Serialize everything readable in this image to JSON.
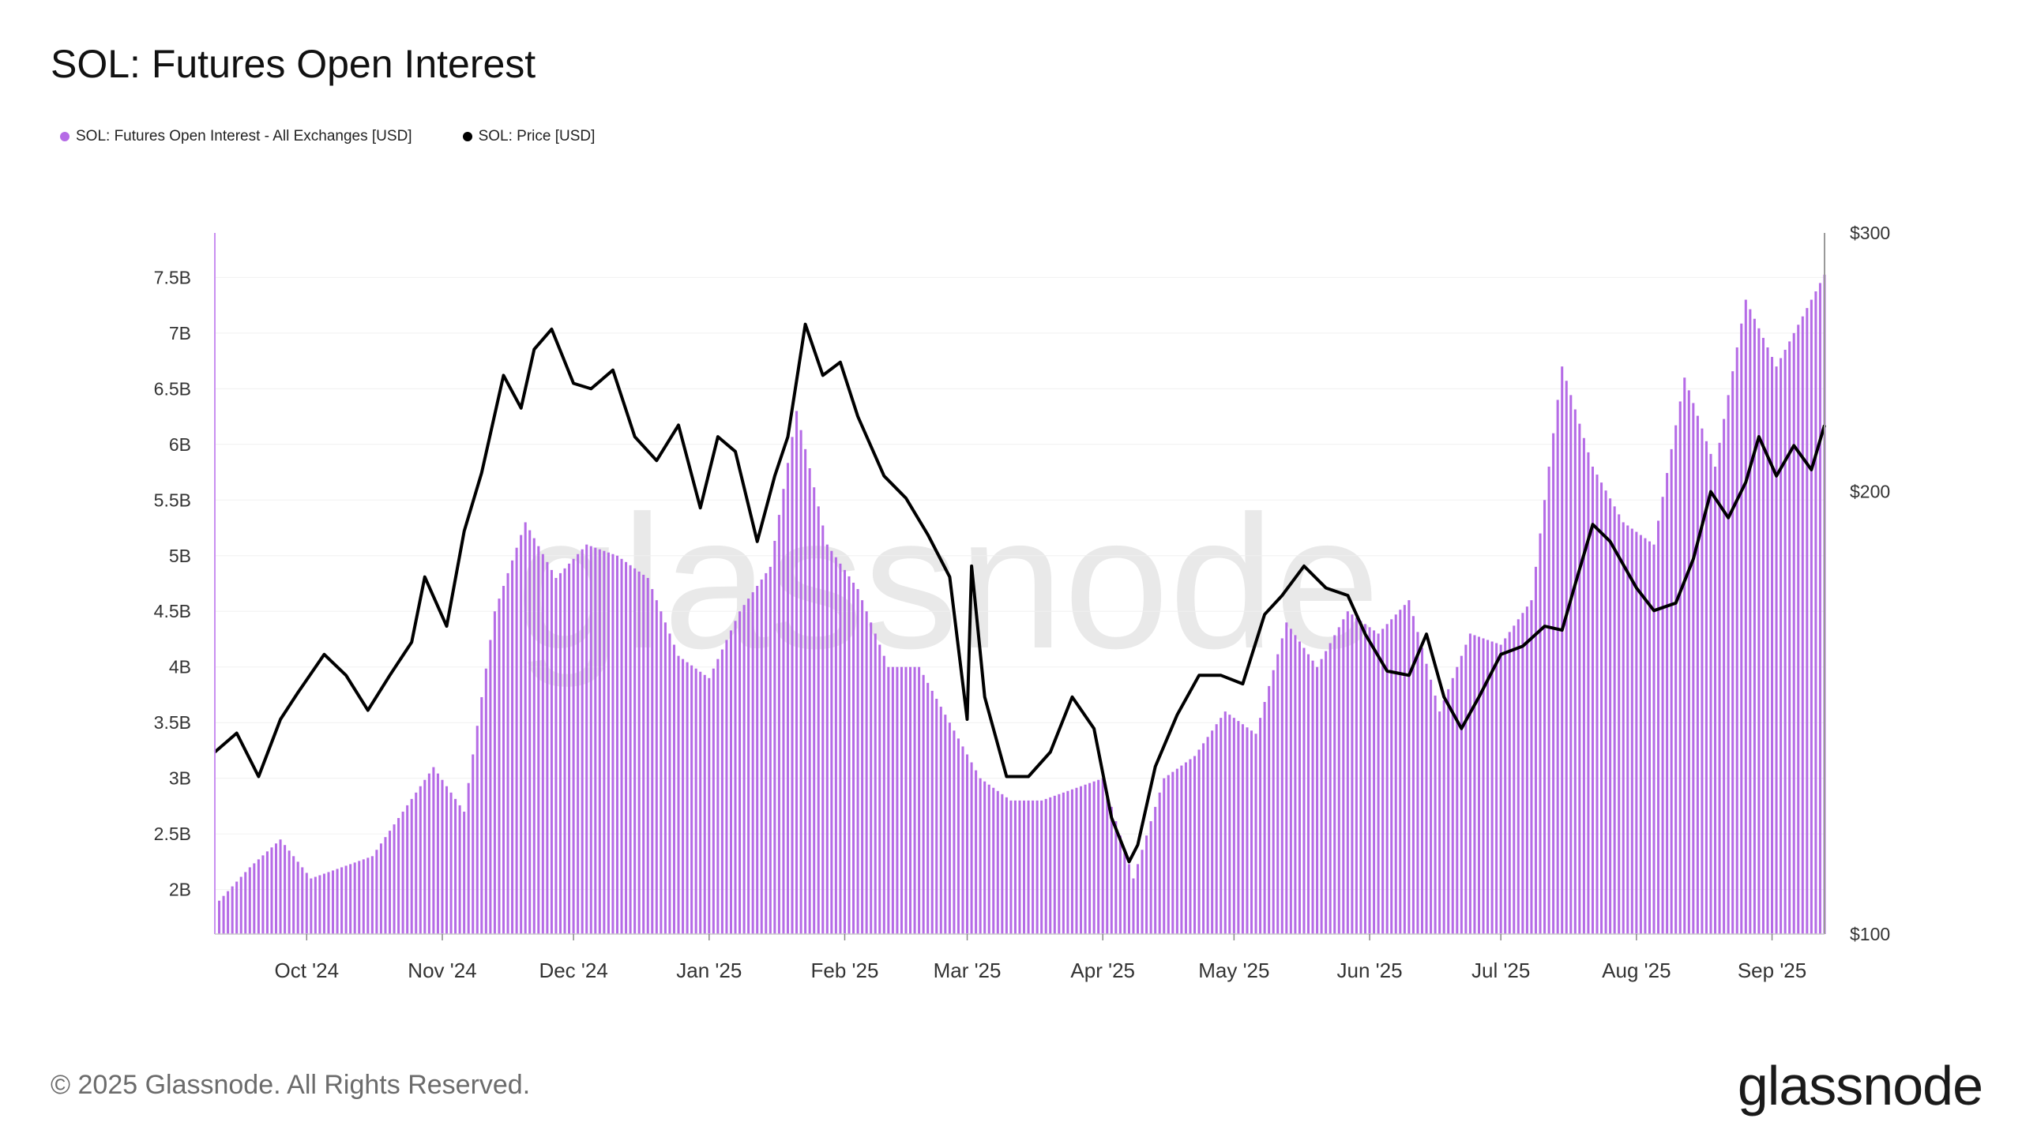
{
  "title": "SOL: Futures Open Interest",
  "legend": [
    {
      "label": "SOL: Futures Open Interest - All Exchanges [USD]",
      "color": "#b56be6"
    },
    {
      "label": "SOL: Price [USD]",
      "color": "#000000"
    }
  ],
  "footer": "© 2025 Glassnode. All Rights Reserved.",
  "logo": "glassnode",
  "watermark": "glassnode",
  "chart_data": {
    "type": "bar",
    "xlabel": "",
    "ylabel": "",
    "x_start": "2024-09-10",
    "x_end": "2025-09-13",
    "x_ticks": [
      {
        "label": "Oct '24",
        "date": "2024-10-01"
      },
      {
        "label": "Nov '24",
        "date": "2024-11-01"
      },
      {
        "label": "Dec '24",
        "date": "2024-12-01"
      },
      {
        "label": "Jan '25",
        "date": "2025-01-01"
      },
      {
        "label": "Feb '25",
        "date": "2025-02-01"
      },
      {
        "label": "Mar '25",
        "date": "2025-03-01"
      },
      {
        "label": "Apr '25",
        "date": "2025-04-01"
      },
      {
        "label": "May '25",
        "date": "2025-05-01"
      },
      {
        "label": "Jun '25",
        "date": "2025-06-01"
      },
      {
        "label": "Jul '25",
        "date": "2025-07-01"
      },
      {
        "label": "Aug '25",
        "date": "2025-08-01"
      },
      {
        "label": "Sep '25",
        "date": "2025-09-01"
      }
    ],
    "y_left": {
      "scale": "linear",
      "range": [
        1.6,
        7.9
      ],
      "ticks": [
        {
          "label": "2B",
          "value": 2.0
        },
        {
          "label": "2.5B",
          "value": 2.5
        },
        {
          "label": "3B",
          "value": 3.0
        },
        {
          "label": "3.5B",
          "value": 3.5
        },
        {
          "label": "4B",
          "value": 4.0
        },
        {
          "label": "4.5B",
          "value": 4.5
        },
        {
          "label": "5B",
          "value": 5.0
        },
        {
          "label": "5.5B",
          "value": 5.5
        },
        {
          "label": "6B",
          "value": 6.0
        },
        {
          "label": "6.5B",
          "value": 6.5
        },
        {
          "label": "7B",
          "value": 7.0
        },
        {
          "label": "7.5B",
          "value": 7.5
        }
      ]
    },
    "y_right": {
      "scale": "log",
      "range": [
        100,
        300
      ],
      "ticks": [
        {
          "label": "$300",
          "value": 300
        },
        {
          "label": "$200",
          "value": 200
        },
        {
          "label": "$100",
          "value": 100
        }
      ]
    },
    "series": [
      {
        "name": "SOL: Futures Open Interest - All Exchanges [USD]",
        "axis": "left",
        "unit": "B USD",
        "color": "#b56be6",
        "dates": [
          "2024-09-10",
          "2024-09-17",
          "2024-09-24",
          "2024-10-01",
          "2024-10-08",
          "2024-10-15",
          "2024-10-22",
          "2024-10-29",
          "2024-11-05",
          "2024-11-12",
          "2024-11-19",
          "2024-11-26",
          "2024-12-03",
          "2024-12-10",
          "2024-12-17",
          "2024-12-24",
          "2024-12-31",
          "2025-01-07",
          "2025-01-14",
          "2025-01-20",
          "2025-01-27",
          "2025-02-03",
          "2025-02-10",
          "2025-02-17",
          "2025-02-24",
          "2025-03-03",
          "2025-03-10",
          "2025-03-17",
          "2025-03-24",
          "2025-03-31",
          "2025-04-07",
          "2025-04-14",
          "2025-04-21",
          "2025-04-28",
          "2025-05-05",
          "2025-05-12",
          "2025-05-19",
          "2025-05-26",
          "2025-06-02",
          "2025-06-09",
          "2025-06-16",
          "2025-06-23",
          "2025-06-30",
          "2025-07-07",
          "2025-07-14",
          "2025-07-21",
          "2025-07-28",
          "2025-08-04",
          "2025-08-11",
          "2025-08-18",
          "2025-08-25",
          "2025-09-01",
          "2025-09-13"
        ],
        "values": [
          1.9,
          2.2,
          2.45,
          2.1,
          2.2,
          2.3,
          2.7,
          3.1,
          2.7,
          4.5,
          5.3,
          4.8,
          5.1,
          5.0,
          4.8,
          4.1,
          3.9,
          4.5,
          4.9,
          6.3,
          5.1,
          4.7,
          4.0,
          4.0,
          3.5,
          3.0,
          2.8,
          2.8,
          2.9,
          3.0,
          2.1,
          3.0,
          3.2,
          3.6,
          3.4,
          4.4,
          4.0,
          4.5,
          4.3,
          4.6,
          3.6,
          4.3,
          4.2,
          4.6,
          6.7,
          5.8,
          5.3,
          5.1,
          6.6,
          5.8,
          7.3,
          6.7,
          7.6
        ]
      },
      {
        "name": "SOL: Price [USD]",
        "axis": "right",
        "unit": "USD",
        "color": "#000000",
        "dates": [
          "2024-09-10",
          "2024-09-15",
          "2024-09-20",
          "2024-09-25",
          "2024-09-29",
          "2024-10-05",
          "2024-10-10",
          "2024-10-15",
          "2024-10-20",
          "2024-10-25",
          "2024-10-28",
          "2024-11-02",
          "2024-11-06",
          "2024-11-10",
          "2024-11-15",
          "2024-11-19",
          "2024-11-22",
          "2024-11-26",
          "2024-12-01",
          "2024-12-05",
          "2024-12-10",
          "2024-12-15",
          "2024-12-20",
          "2024-12-25",
          "2024-12-30",
          "2025-01-03",
          "2025-01-07",
          "2025-01-12",
          "2025-01-16",
          "2025-01-19",
          "2025-01-23",
          "2025-01-27",
          "2025-01-31",
          "2025-02-04",
          "2025-02-10",
          "2025-02-15",
          "2025-02-20",
          "2025-02-25",
          "2025-03-01",
          "2025-03-02",
          "2025-03-05",
          "2025-03-10",
          "2025-03-15",
          "2025-03-20",
          "2025-03-25",
          "2025-03-30",
          "2025-04-03",
          "2025-04-07",
          "2025-04-09",
          "2025-04-13",
          "2025-04-18",
          "2025-04-23",
          "2025-04-28",
          "2025-05-03",
          "2025-05-08",
          "2025-05-12",
          "2025-05-17",
          "2025-05-22",
          "2025-05-27",
          "2025-05-31",
          "2025-06-05",
          "2025-06-10",
          "2025-06-14",
          "2025-06-18",
          "2025-06-22",
          "2025-06-26",
          "2025-07-01",
          "2025-07-06",
          "2025-07-11",
          "2025-07-15",
          "2025-07-18",
          "2025-07-22",
          "2025-07-26",
          "2025-08-01",
          "2025-08-05",
          "2025-08-10",
          "2025-08-14",
          "2025-08-18",
          "2025-08-22",
          "2025-08-26",
          "2025-08-29",
          "2025-09-02",
          "2025-09-06",
          "2025-09-10",
          "2025-09-13"
        ],
        "values": [
          133,
          137,
          128,
          140,
          146,
          155,
          150,
          142,
          150,
          158,
          175,
          162,
          188,
          206,
          240,
          228,
          250,
          258,
          237,
          235,
          242,
          218,
          210,
          222,
          195,
          218,
          213,
          185,
          205,
          218,
          260,
          240,
          245,
          225,
          205,
          198,
          187,
          175,
          140,
          178,
          145,
          128,
          128,
          133,
          145,
          138,
          120,
          112,
          115,
          130,
          141,
          150,
          150,
          148,
          165,
          170,
          178,
          172,
          170,
          160,
          151,
          150,
          160,
          145,
          138,
          145,
          155,
          157,
          162,
          161,
          173,
          190,
          185,
          172,
          166,
          168,
          180,
          200,
          192,
          203,
          218,
          205,
          215,
          207,
          222
        ]
      }
    ]
  }
}
